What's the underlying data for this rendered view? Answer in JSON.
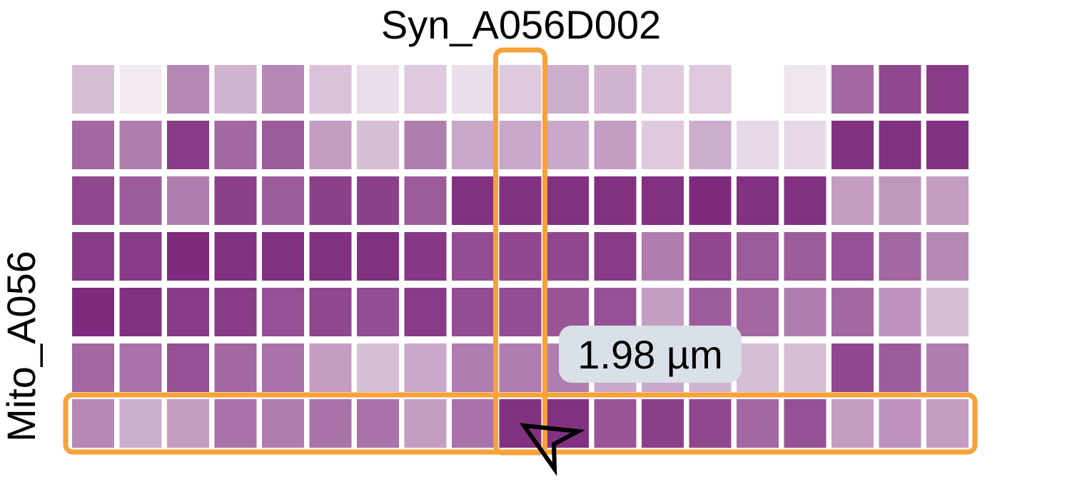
{
  "header": {
    "column_label": "Syn_A056D002"
  },
  "axis": {
    "row_label": "Mito_A056"
  },
  "tooltip": {
    "value_text": "1.98 µm"
  },
  "colors": {
    "low": "#ffffff",
    "high": "#7b267a",
    "highlight": "#f7a23a",
    "tooltip_bg": "#d9e0e8"
  },
  "selection": {
    "row": 6,
    "col": 9
  },
  "chart_data": {
    "type": "heatmap",
    "n_rows": 7,
    "n_cols": 19,
    "value_range": [
      0,
      1
    ],
    "values": [
      [
        0.3,
        0.1,
        0.55,
        0.35,
        0.55,
        0.28,
        0.15,
        0.25,
        0.15,
        0.25,
        0.38,
        0.35,
        0.25,
        0.25,
        0.0,
        0.12,
        0.7,
        0.85,
        0.9
      ],
      [
        0.7,
        0.6,
        0.9,
        0.7,
        0.75,
        0.45,
        0.3,
        0.6,
        0.4,
        0.4,
        0.4,
        0.45,
        0.25,
        0.38,
        0.18,
        0.18,
        0.95,
        0.95,
        0.95
      ],
      [
        0.85,
        0.75,
        0.6,
        0.88,
        0.75,
        0.88,
        0.88,
        0.75,
        0.95,
        0.95,
        0.95,
        0.95,
        0.95,
        0.98,
        0.95,
        0.95,
        0.45,
        0.48,
        0.45
      ],
      [
        0.9,
        0.9,
        0.98,
        0.95,
        0.95,
        0.95,
        0.95,
        0.92,
        0.82,
        0.85,
        0.85,
        0.9,
        0.6,
        0.85,
        0.75,
        0.75,
        0.8,
        0.7,
        0.55
      ],
      [
        0.98,
        0.95,
        0.9,
        0.9,
        0.8,
        0.85,
        0.82,
        0.9,
        0.82,
        0.82,
        0.78,
        0.8,
        0.45,
        0.75,
        0.7,
        0.6,
        0.7,
        0.5,
        0.3
      ],
      [
        0.7,
        0.65,
        0.8,
        0.7,
        0.65,
        0.45,
        0.3,
        0.4,
        0.6,
        0.6,
        0.6,
        0.4,
        0.4,
        0.35,
        0.3,
        0.3,
        0.85,
        0.75,
        0.6
      ],
      [
        0.55,
        0.38,
        0.45,
        0.65,
        0.6,
        0.65,
        0.65,
        0.45,
        0.65,
        0.95,
        0.95,
        0.78,
        0.88,
        0.85,
        0.7,
        0.8,
        0.45,
        0.5,
        0.45
      ]
    ]
  }
}
